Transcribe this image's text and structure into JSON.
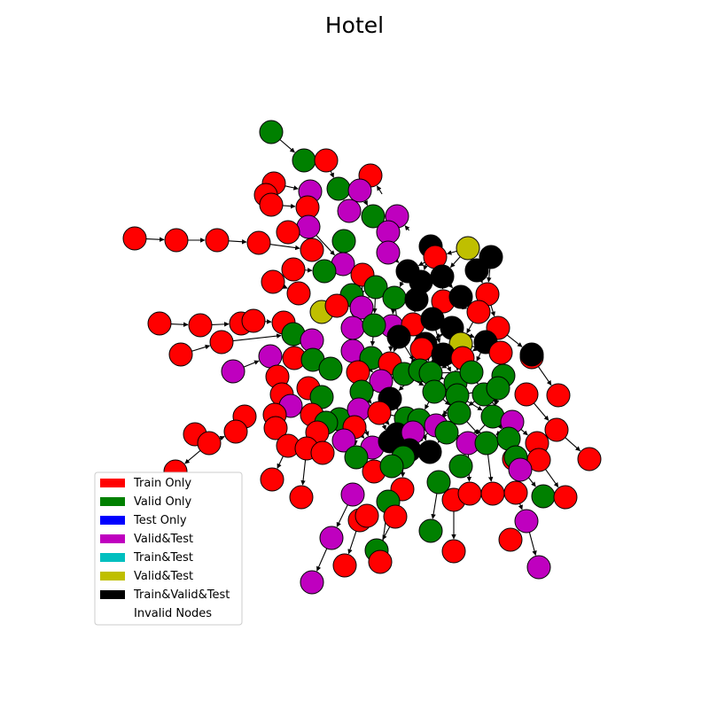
{
  "title": "Hotel",
  "legend": [
    {
      "label": "Train Only",
      "color": "#ff0000"
    },
    {
      "label": "Valid Only",
      "color": "#008000"
    },
    {
      "label": "Test Only",
      "color": "#0000ff"
    },
    {
      "label": "Valid&Test",
      "color": "#bf00bf"
    },
    {
      "label": "Train&Test",
      "color": "#00bfbf"
    },
    {
      "label": "Valid&Test",
      "color": "#bfbf00"
    },
    {
      "label": "Train&Valid&Test",
      "color": "#000000"
    },
    {
      "label": "Invalid Nodes",
      "color": "#ffffff"
    }
  ]
}
